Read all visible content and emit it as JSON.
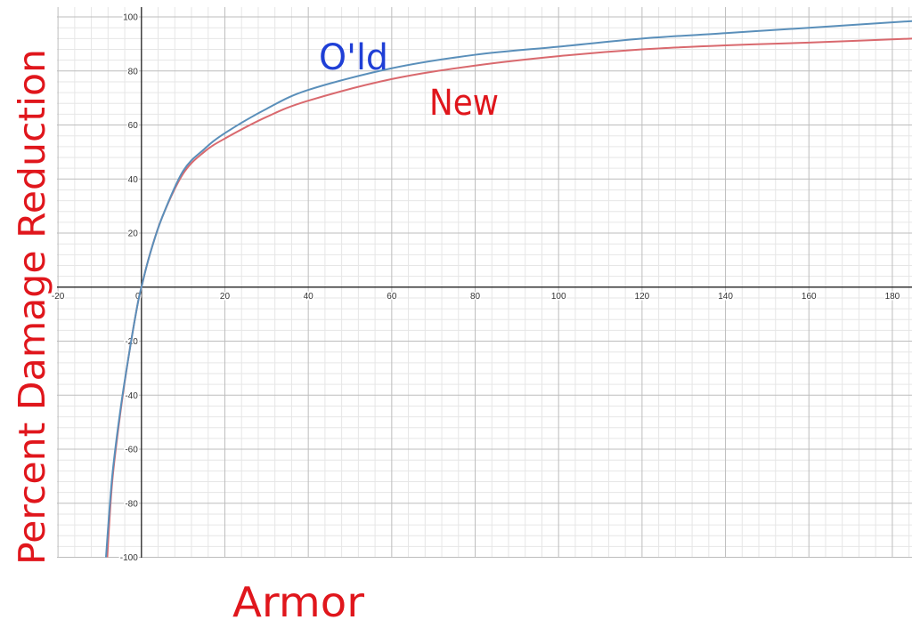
{
  "chart_data": {
    "type": "line",
    "title": "",
    "xlabel": "Armor",
    "ylabel": "Percent Damage Reduction",
    "xlim": [
      -20,
      185
    ],
    "ylim": [
      -100,
      100
    ],
    "grid": true,
    "x_ticks": [
      "-20",
      "0",
      "20",
      "40",
      "60",
      "80",
      "100",
      "120",
      "140",
      "160",
      "180"
    ],
    "y_ticks": [
      "100",
      "80",
      "60",
      "40",
      "20",
      "-20",
      "-40",
      "-60",
      "-80",
      "-100"
    ],
    "series": [
      {
        "name": "Old",
        "label": "O'ld",
        "color": "#5a8fba",
        "label_color": "#1f3fd6",
        "x": [
          -8.5,
          -7,
          -5,
          -3,
          -1,
          0,
          2,
          5,
          10,
          15,
          20,
          30,
          40,
          60,
          80,
          100,
          120,
          140,
          160,
          185
        ],
        "y": [
          -100,
          -70,
          -45,
          -25,
          -7,
          0,
          12,
          26,
          43,
          51,
          57,
          66,
          73,
          81,
          86,
          89,
          92,
          94,
          96,
          98.5
        ]
      },
      {
        "name": "New",
        "label": "New",
        "color": "#d9696e",
        "label_color": "#e0161c",
        "x": [
          -8.2,
          -7,
          -5,
          -3,
          -1,
          0,
          2,
          5,
          10,
          15,
          20,
          30,
          40,
          60,
          80,
          100,
          120,
          140,
          160,
          185
        ],
        "y": [
          -100,
          -72,
          -46,
          -25,
          -7,
          0,
          12,
          26,
          42,
          50,
          55,
          63,
          69,
          77,
          82,
          85.5,
          88,
          89.5,
          90.5,
          92
        ]
      }
    ]
  }
}
